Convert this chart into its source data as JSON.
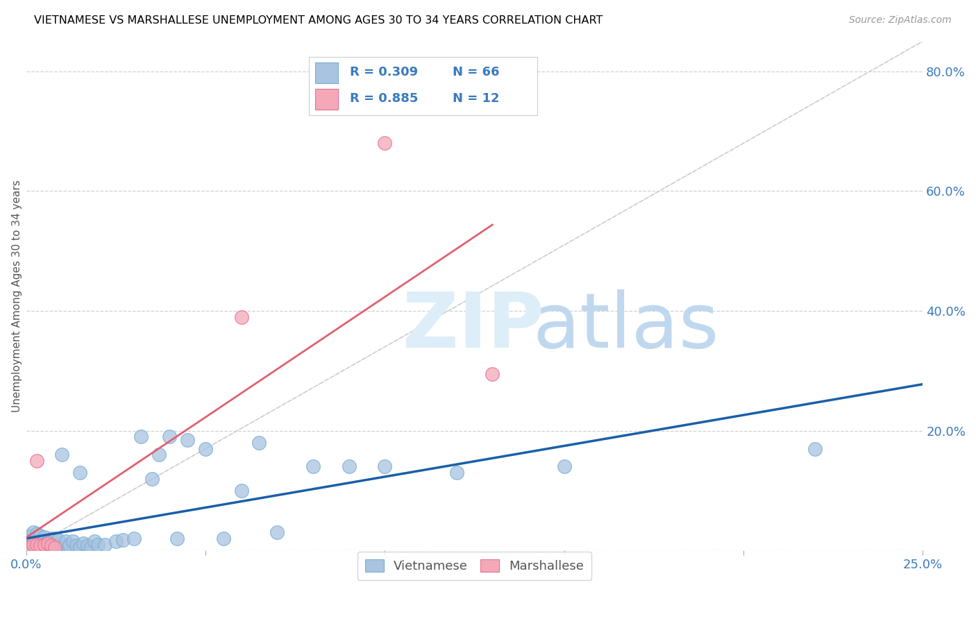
{
  "title": "VIETNAMESE VS MARSHALLESE UNEMPLOYMENT AMONG AGES 30 TO 34 YEARS CORRELATION CHART",
  "source": "Source: ZipAtlas.com",
  "ylabel": "Unemployment Among Ages 30 to 34 years",
  "xlim": [
    0.0,
    0.25
  ],
  "ylim": [
    0.0,
    0.85
  ],
  "viet_color": "#a8c4e0",
  "viet_edge_color": "#7aaed4",
  "marsh_color": "#f4a8b8",
  "marsh_edge_color": "#e87090",
  "viet_line_color": "#1a5fa8",
  "marsh_line_color": "#e06070",
  "ref_line_color": "#cccccc",
  "grid_color": "#d0d0d0",
  "tick_color": "#3a7abf",
  "title_color": "#000000",
  "source_color": "#999999",
  "ylabel_color": "#555555",
  "watermark_zip_color": "#ddeef8",
  "watermark_atlas_color": "#c0d8ee",
  "legend_r_color": "#3a7abf",
  "legend_n_color": "#3a7abf",
  "viet_x": [
    0.001,
    0.001,
    0.001,
    0.001,
    0.002,
    0.002,
    0.002,
    0.002,
    0.002,
    0.003,
    0.003,
    0.003,
    0.003,
    0.003,
    0.004,
    0.004,
    0.004,
    0.004,
    0.005,
    0.005,
    0.005,
    0.005,
    0.006,
    0.006,
    0.007,
    0.007,
    0.007,
    0.008,
    0.008,
    0.009,
    0.009,
    0.01,
    0.01,
    0.011,
    0.011,
    0.012,
    0.013,
    0.014,
    0.015,
    0.015,
    0.016,
    0.017,
    0.018,
    0.019,
    0.02,
    0.022,
    0.025,
    0.027,
    0.03,
    0.032,
    0.035,
    0.037,
    0.04,
    0.042,
    0.045,
    0.05,
    0.055,
    0.06,
    0.065,
    0.07,
    0.08,
    0.09,
    0.1,
    0.12,
    0.15,
    0.22
  ],
  "viet_y": [
    0.005,
    0.01,
    0.015,
    0.025,
    0.003,
    0.008,
    0.012,
    0.02,
    0.03,
    0.005,
    0.008,
    0.013,
    0.02,
    0.028,
    0.005,
    0.01,
    0.018,
    0.025,
    0.005,
    0.01,
    0.015,
    0.022,
    0.008,
    0.015,
    0.005,
    0.012,
    0.02,
    0.008,
    0.02,
    0.005,
    0.018,
    0.005,
    0.16,
    0.01,
    0.015,
    0.008,
    0.015,
    0.008,
    0.005,
    0.13,
    0.012,
    0.008,
    0.005,
    0.015,
    0.01,
    0.01,
    0.015,
    0.018,
    0.02,
    0.19,
    0.12,
    0.16,
    0.19,
    0.02,
    0.185,
    0.17,
    0.02,
    0.1,
    0.18,
    0.03,
    0.14,
    0.14,
    0.14,
    0.13,
    0.14,
    0.17
  ],
  "marsh_x": [
    0.001,
    0.002,
    0.003,
    0.003,
    0.004,
    0.005,
    0.006,
    0.007,
    0.008,
    0.06,
    0.1,
    0.13
  ],
  "marsh_y": [
    0.005,
    0.01,
    0.01,
    0.15,
    0.008,
    0.01,
    0.012,
    0.008,
    0.005,
    0.39,
    0.68,
    0.295
  ]
}
